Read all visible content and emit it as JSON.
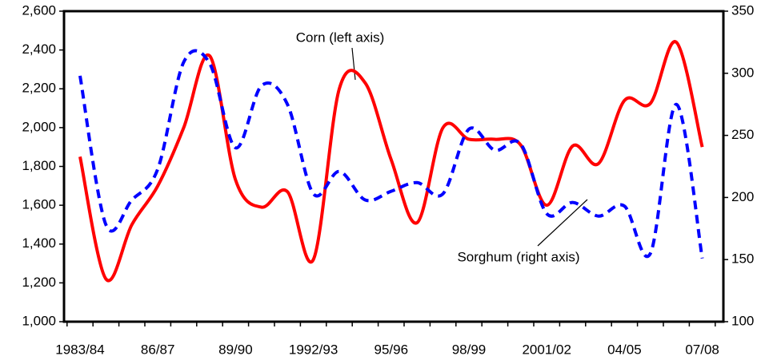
{
  "chart_data": {
    "type": "line",
    "categories": [
      "1983/84",
      null,
      null,
      "86/87",
      null,
      null,
      "89/90",
      null,
      null,
      "1992/93",
      null,
      null,
      "95/96",
      null,
      null,
      "98/99",
      null,
      null,
      "2001/02",
      null,
      null,
      "04/05",
      null,
      null,
      "07/08"
    ],
    "series": [
      {
        "name": "Corn (left axis)",
        "color": "#ff0000",
        "axis": "y",
        "values": [
          1850,
          1220,
          1500,
          1700,
          2000,
          2370,
          1730,
          1590,
          1670,
          1320,
          2200,
          2230,
          1835,
          1510,
          2000,
          1940,
          1940,
          1910,
          1600,
          1905,
          1815,
          2140,
          2125,
          2440,
          1900
        ]
      },
      {
        "name": "Sorghum (right axis)",
        "color": "#0000ff",
        "axis": "y2",
        "values": [
          298,
          178,
          198,
          223,
          309,
          308,
          240,
          290,
          275,
          203,
          221,
          198,
          205,
          212,
          203,
          255,
          238,
          243,
          187,
          196,
          185,
          193,
          155,
          275,
          151
        ]
      }
    ],
    "ylim": [
      1000,
      2600
    ],
    "yticks": [
      {
        "value": 1000,
        "label": "1,000"
      },
      {
        "value": 1200,
        "label": "1,200"
      },
      {
        "value": 1400,
        "label": "1,400"
      },
      {
        "value": 1600,
        "label": "1,600"
      },
      {
        "value": 1800,
        "label": "1,800"
      },
      {
        "value": 2000,
        "label": "2,000"
      },
      {
        "value": 2200,
        "label": "2,200"
      },
      {
        "value": 2400,
        "label": "2,400"
      },
      {
        "value": 2600,
        "label": "2,600"
      }
    ],
    "y2lim": [
      100,
      350
    ],
    "y2ticks": [
      100,
      150,
      200,
      250,
      300,
      350
    ],
    "grid": false
  }
}
